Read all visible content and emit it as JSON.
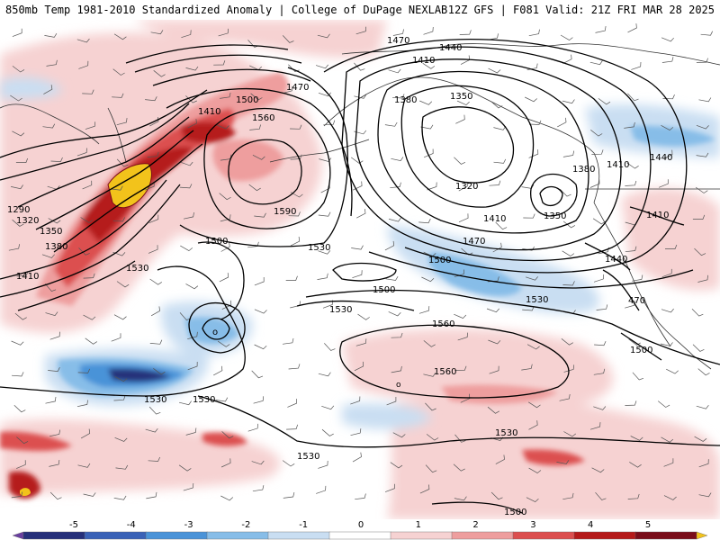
{
  "header": {
    "left_title": "850mb Temp 1981-2010 Standardized Anomaly | College of DuPage NEXLAB",
    "right_title": "12Z GFS | F081 Valid: 21Z FRI MAR 28 2025"
  },
  "colorbar": {
    "ticks": [
      "-5",
      "-4",
      "-3",
      "-2",
      "-1",
      "0",
      "1",
      "2",
      "3",
      "4",
      "5"
    ],
    "colors": [
      "#6a3fa0",
      "#26307a",
      "#3a62b7",
      "#4a93d8",
      "#87bde8",
      "#c9def2",
      "#ffffff",
      "#f6d2d2",
      "#ee9e9e",
      "#dc4f4f",
      "#b51a1a",
      "#7a0d1a",
      "#f2c31b"
    ]
  },
  "height_labels": [
    {
      "id": "h1470a",
      "text": "1470"
    },
    {
      "id": "h1440a",
      "text": "1440"
    },
    {
      "id": "h1410a",
      "text": "1410"
    },
    {
      "id": "h1470b",
      "text": "1470"
    },
    {
      "id": "h1500a",
      "text": "1500"
    },
    {
      "id": "h1560a",
      "text": "1560"
    },
    {
      "id": "h1410b",
      "text": "1410"
    },
    {
      "id": "h1380a",
      "text": "1380"
    },
    {
      "id": "h1350a",
      "text": "1350"
    },
    {
      "id": "h1380b",
      "text": "1380"
    },
    {
      "id": "h1410c",
      "text": "1410"
    },
    {
      "id": "h1440b",
      "text": "1440"
    },
    {
      "id": "h1320a",
      "text": "1320"
    },
    {
      "id": "h1350b",
      "text": "1350"
    },
    {
      "id": "h1410d",
      "text": "1410"
    },
    {
      "id": "h1410e",
      "text": "1410"
    },
    {
      "id": "h1590a",
      "text": "1590"
    },
    {
      "id": "h1290a",
      "text": "1290"
    },
    {
      "id": "h1320b",
      "text": "1320"
    },
    {
      "id": "h1350c",
      "text": "1350"
    },
    {
      "id": "h1380c",
      "text": "1380"
    },
    {
      "id": "h1410f",
      "text": "1410"
    },
    {
      "id": "h1500b",
      "text": "1500"
    },
    {
      "id": "h1530a",
      "text": "1530"
    },
    {
      "id": "h1470c",
      "text": "1470"
    },
    {
      "id": "h1500c",
      "text": "1500"
    },
    {
      "id": "h1440c",
      "text": "1440"
    },
    {
      "id": "h1530b",
      "text": "1530"
    },
    {
      "id": "h1500d",
      "text": "1500"
    },
    {
      "id": "h1530c",
      "text": "1530"
    },
    {
      "id": "h1530d",
      "text": "1530"
    },
    {
      "id": "h1560b",
      "text": "1560"
    },
    {
      "id": "h1470d",
      "text": "470"
    },
    {
      "id": "h1500e",
      "text": "1500"
    },
    {
      "id": "h1560c",
      "text": "1560"
    },
    {
      "id": "h1530e",
      "text": "1530"
    },
    {
      "id": "h1530f",
      "text": "1530"
    },
    {
      "id": "h1530g",
      "text": "1530"
    },
    {
      "id": "h1530h",
      "text": "1530"
    },
    {
      "id": "h1500f",
      "text": "1500"
    }
  ]
}
